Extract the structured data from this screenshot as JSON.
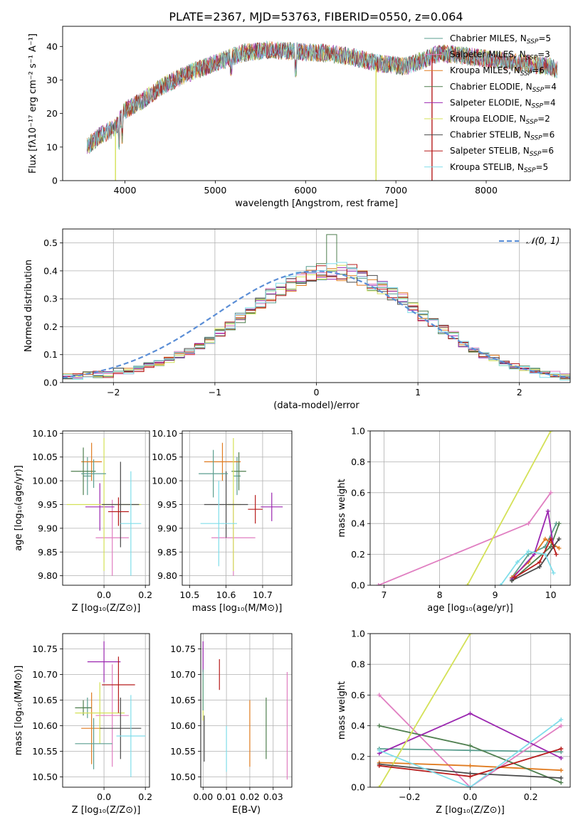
{
  "figure": {
    "title": "PLATE=2367, MJD=53763, FIBERID=0550, z=0.064"
  },
  "legend": {
    "models": [
      {
        "name": "Chabrier MILES",
        "n": "5",
        "color": "#5a9e8f"
      },
      {
        "name": "Salpeter MILES",
        "n": "3",
        "color": "#e07ec1"
      },
      {
        "name": "Kroupa MILES",
        "n": "6",
        "color": "#e07b20"
      },
      {
        "name": "Chabrier ELODIE",
        "n": "4",
        "color": "#4f7f4f"
      },
      {
        "name": "Salpeter ELODIE",
        "n": "4",
        "color": "#9b27b0"
      },
      {
        "name": "Kroupa ELODIE",
        "n": "2",
        "color": "#d4e157"
      },
      {
        "name": "Chabrier STELIB",
        "n": "6",
        "color": "#4a4a4a"
      },
      {
        "name": "Salpeter STELIB",
        "n": "6",
        "color": "#b71c1c"
      },
      {
        "name": "Kroupa STELIB",
        "n": "5",
        "color": "#80deea"
      }
    ],
    "nssp_label": "N",
    "nssp_sub": "SSP"
  },
  "chart_data": [
    {
      "id": "spectrum",
      "type": "line",
      "xlabel": "wavelength [Angstrom, rest frame]",
      "ylabel": "Flux [fλ10⁻¹⁷ erg cm⁻² s⁻¹ A⁻¹]",
      "xlim": [
        3310,
        8930
      ],
      "ylim": [
        0,
        46
      ],
      "xticks": [
        "4000",
        "5000",
        "6000",
        "7000",
        "8000"
      ],
      "yticks": [
        "0",
        "10",
        "20",
        "30",
        "40"
      ],
      "continuum": {
        "x": [
          3580,
          3700,
          3900,
          4000,
          4200,
          4400,
          4700,
          5000,
          5300,
          5600,
          5900,
          6200,
          6500,
          6800,
          7100,
          7300,
          7500,
          7800,
          8100,
          8400,
          8700,
          8790
        ],
        "y": [
          10,
          13,
          16,
          21,
          24,
          28,
          32,
          35,
          38,
          39,
          38.5,
          38,
          37,
          35,
          34,
          36,
          38,
          37,
          36,
          35,
          34,
          33
        ]
      },
      "dropouts": [
        {
          "model": "Kroupa ELODIE",
          "x": 3895
        },
        {
          "model": "Kroupa ELODIE",
          "x": 6780
        },
        {
          "model": "Salpeter STELIB",
          "x": 7400
        }
      ]
    },
    {
      "id": "residuals",
      "type": "bar",
      "xlabel": "(data-model)/error",
      "ylabel": "Normed distribution",
      "xlim": [
        -2.5,
        2.5
      ],
      "ylim": [
        0,
        0.55
      ],
      "xticks": [
        "−2",
        "−1",
        "0",
        "1",
        "2"
      ],
      "yticks": [
        "0.0",
        "0.1",
        "0.2",
        "0.3",
        "0.4",
        "0.5"
      ],
      "legend": "𝒩(0, 1)",
      "gaussian_color": "#5b8ed6",
      "bin_width": 0.1,
      "bin_start": -2.5,
      "base_values": [
        0.02,
        0.02,
        0.03,
        0.03,
        0.03,
        0.04,
        0.04,
        0.05,
        0.06,
        0.07,
        0.08,
        0.1,
        0.11,
        0.13,
        0.15,
        0.18,
        0.2,
        0.23,
        0.26,
        0.28,
        0.31,
        0.33,
        0.35,
        0.37,
        0.39,
        0.4,
        0.4,
        0.4,
        0.39,
        0.38,
        0.36,
        0.34,
        0.32,
        0.3,
        0.27,
        0.24,
        0.22,
        0.19,
        0.17,
        0.14,
        0.12,
        0.1,
        0.09,
        0.07,
        0.06,
        0.05,
        0.04,
        0.03,
        0.03,
        0.02
      ],
      "peak": {
        "x": 0.1,
        "y": 0.53
      }
    },
    {
      "id": "age-vs-Z",
      "type": "scatter",
      "xlabel": "Z [log₁₀(Z/Z⊙)]",
      "ylabel": "age  [log₁₀(age/yr)]",
      "xlim": [
        -0.2,
        0.22
      ],
      "ylim": [
        9.78,
        10.105
      ],
      "xticks": [
        "0.0",
        "0.2"
      ],
      "yticks": [
        "9.80",
        "9.85",
        "9.90",
        "9.95",
        "10.00",
        "10.05",
        "10.10"
      ],
      "points": [
        {
          "x": -0.08,
          "xerr": 0.02,
          "y": 10.01,
          "yerr": 0.04
        },
        {
          "x": 0.04,
          "xerr": 0.08,
          "y": 9.88,
          "yerr": 0.08
        },
        {
          "x": -0.06,
          "xerr": 0.05,
          "y": 10.04,
          "yerr": 0.04
        },
        {
          "x": -0.1,
          "xerr": 0.06,
          "y": 10.02,
          "yerr": 0.05
        },
        {
          "x": -0.02,
          "xerr": 0.07,
          "y": 9.945,
          "yerr": 0.05
        },
        {
          "x": 0.0,
          "xerr": 0.18,
          "y": 9.95,
          "yerr": 0.14
        },
        {
          "x": 0.08,
          "xerr": 0.09,
          "y": 9.95,
          "yerr": 0.09
        },
        {
          "x": 0.07,
          "xerr": 0.05,
          "y": 9.935,
          "yerr": 0.03
        },
        {
          "x": 0.13,
          "xerr": 0.05,
          "y": 9.91,
          "yerr": 0.11
        },
        {
          "x": -0.05,
          "xerr": 0.06,
          "y": 10.015,
          "yerr": 0.03
        }
      ]
    },
    {
      "id": "age-vs-mass",
      "type": "scatter",
      "xlabel": "mass [log₁₀(M/M⊙)]",
      "ylabel": "",
      "xlim": [
        10.48,
        10.78
      ],
      "ylim": [
        9.78,
        10.105
      ],
      "xticks": [
        "10.5",
        "10.6",
        "10.7"
      ],
      "yticks": [
        "9.80",
        "9.85",
        "9.90",
        "9.95",
        "10.00",
        "10.05",
        "10.10"
      ],
      "points": [
        {
          "x": 10.63,
          "xerr": 0.01,
          "y": 10.01,
          "yerr": 0.04
        },
        {
          "x": 10.62,
          "xerr": 0.06,
          "y": 9.88,
          "yerr": 0.08
        },
        {
          "x": 10.59,
          "xerr": 0.05,
          "y": 10.04,
          "yerr": 0.04
        },
        {
          "x": 10.635,
          "xerr": 0.02,
          "y": 10.02,
          "yerr": 0.04
        },
        {
          "x": 10.725,
          "xerr": 0.03,
          "y": 9.945,
          "yerr": 0.03
        },
        {
          "x": 10.62,
          "xerr": 0.02,
          "y": 9.95,
          "yerr": 0.14
        },
        {
          "x": 10.6,
          "xerr": 0.06,
          "y": 9.95,
          "yerr": 0.07
        },
        {
          "x": 10.68,
          "xerr": 0.02,
          "y": 9.94,
          "yerr": 0.03
        },
        {
          "x": 10.58,
          "xerr": 0.05,
          "y": 9.91,
          "yerr": 0.09
        },
        {
          "x": 10.565,
          "xerr": 0.04,
          "y": 10.015,
          "yerr": 0.05
        }
      ]
    },
    {
      "id": "mass-weight-vs-age",
      "type": "line",
      "xlabel": "age  [log₁₀(age/yr)]",
      "ylabel": "mass weight",
      "xlim": [
        6.75,
        10.35
      ],
      "ylim": [
        0,
        1.0
      ],
      "xticks": [
        "7",
        "8",
        "9",
        "10"
      ],
      "yticks": [
        "0.0",
        "0.2",
        "0.4",
        "0.6",
        "0.8",
        "1.0"
      ],
      "series": [
        {
          "model": "Chabrier MILES",
          "x": [
            9.3,
            9.6,
            9.9,
            10.1
          ],
          "y": [
            0.05,
            0.2,
            0.25,
            0.4
          ]
        },
        {
          "model": "Salpeter MILES",
          "x": [
            6.9,
            9.6,
            10.0
          ],
          "y": [
            0.0,
            0.4,
            0.6
          ]
        },
        {
          "model": "Kroupa MILES",
          "x": [
            9.3,
            9.6,
            9.9,
            10.15
          ],
          "y": [
            0.05,
            0.15,
            0.3,
            0.24
          ]
        },
        {
          "model": "Chabrier ELODIE",
          "x": [
            9.3,
            10.0,
            10.15
          ],
          "y": [
            0.03,
            0.25,
            0.4
          ]
        },
        {
          "model": "Salpeter ELODIE",
          "x": [
            9.3,
            9.7,
            9.95,
            10.05
          ],
          "y": [
            0.04,
            0.2,
            0.48,
            0.25
          ]
        },
        {
          "model": "Kroupa ELODIE",
          "x": [
            8.5,
            10.0
          ],
          "y": [
            0.0,
            1.0
          ]
        },
        {
          "model": "Chabrier STELIB",
          "x": [
            9.3,
            9.8,
            10.05,
            10.15
          ],
          "y": [
            0.03,
            0.12,
            0.25,
            0.3
          ]
        },
        {
          "model": "Salpeter STELIB",
          "x": [
            9.35,
            9.8,
            10.0,
            10.1
          ],
          "y": [
            0.05,
            0.15,
            0.3,
            0.2
          ]
        },
        {
          "model": "Kroupa STELIB",
          "x": [
            9.1,
            9.4,
            9.6,
            9.9,
            10.05
          ],
          "y": [
            0.0,
            0.15,
            0.22,
            0.2,
            0.08
          ]
        }
      ]
    },
    {
      "id": "mass-vs-Z",
      "type": "scatter",
      "xlabel": "Z [log₁₀(Z/Z⊙)]",
      "ylabel": "mass [log₁₀(M/M⊙)]",
      "xlim": [
        -0.2,
        0.22
      ],
      "ylim": [
        10.48,
        10.78
      ],
      "xticks": [
        "0.0",
        "0.2"
      ],
      "yticks": [
        "10.50",
        "10.55",
        "10.60",
        "10.65",
        "10.70",
        "10.75"
      ],
      "points": [
        {
          "x": -0.08,
          "xerr": 0.02,
          "y": 10.635,
          "yerr": 0.02
        },
        {
          "x": 0.04,
          "xerr": 0.08,
          "y": 10.62,
          "yerr": 0.1
        },
        {
          "x": -0.06,
          "xerr": 0.05,
          "y": 10.595,
          "yerr": 0.07
        },
        {
          "x": -0.1,
          "xerr": 0.04,
          "y": 10.635,
          "yerr": 0.015
        },
        {
          "x": 0.0,
          "xerr": 0.08,
          "y": 10.725,
          "yerr": 0.04
        },
        {
          "x": -0.02,
          "xerr": 0.12,
          "y": 10.625,
          "yerr": 0.06
        },
        {
          "x": 0.08,
          "xerr": 0.1,
          "y": 10.595,
          "yerr": 0.06
        },
        {
          "x": 0.07,
          "xerr": 0.08,
          "y": 10.68,
          "yerr": 0.055
        },
        {
          "x": 0.13,
          "xerr": 0.07,
          "y": 10.58,
          "yerr": 0.08
        },
        {
          "x": -0.05,
          "xerr": 0.09,
          "y": 10.565,
          "yerr": 0.05
        }
      ]
    },
    {
      "id": "mass-vs-EBV",
      "type": "scatter",
      "xlabel": "E(B-V)",
      "ylabel": "",
      "xlim": [
        -0.001,
        0.038
      ],
      "ylim": [
        10.48,
        10.78
      ],
      "xticks": [
        "0.00",
        "0.01",
        "0.02",
        "0.03"
      ],
      "yticks": [
        "10.50",
        "10.55",
        "10.60",
        "10.65",
        "10.70",
        "10.75"
      ],
      "points": [
        {
          "x": 0.0,
          "y": 10.735,
          "yerr": 0.03,
          "model": "Salpeter ELODIE"
        },
        {
          "x": 0.0,
          "y": 10.65,
          "yerr": 0.04,
          "model": "Kroupa ELODIE"
        },
        {
          "x": 0.0005,
          "y": 10.575,
          "yerr": 0.045,
          "model": "Chabrier STELIB"
        },
        {
          "x": 0.0,
          "y": 10.67,
          "yerr": 0.04,
          "model": "Chabrier MILES"
        },
        {
          "x": 0.007,
          "y": 10.7,
          "yerr": 0.03,
          "model": "Salpeter STELIB"
        },
        {
          "x": 0.01,
          "y": 10.555,
          "yerr": 0.045,
          "model": "Kroupa STELIB"
        },
        {
          "x": 0.02,
          "y": 10.585,
          "yerr": 0.065,
          "model": "Kroupa MILES"
        },
        {
          "x": 0.027,
          "y": 10.595,
          "yerr": 0.06,
          "model": "Chabrier ELODIE"
        },
        {
          "x": 0.036,
          "y": 10.6,
          "yerr": 0.105,
          "model": "Salpeter MILES"
        }
      ]
    },
    {
      "id": "mass-weight-vs-Z",
      "type": "line",
      "xlabel": "Z [log₁₀(Z/Z⊙)]",
      "ylabel": "mass weight",
      "xlim": [
        -0.33,
        0.33
      ],
      "ylim": [
        0,
        1.0
      ],
      "xticks": [
        "−0.2",
        "0.0",
        "0.2"
      ],
      "yticks": [
        "0.0",
        "0.2",
        "0.4",
        "0.6",
        "0.8",
        "1.0"
      ],
      "series": [
        {
          "model": "Chabrier MILES",
          "x": [
            -0.3,
            0.0,
            0.3
          ],
          "y": [
            0.25,
            0.24,
            0.23
          ]
        },
        {
          "model": "Salpeter MILES",
          "x": [
            -0.3,
            0.0,
            0.3
          ],
          "y": [
            0.6,
            0.0,
            0.4
          ]
        },
        {
          "model": "Kroupa MILES",
          "x": [
            -0.3,
            0.0,
            0.3
          ],
          "y": [
            0.16,
            0.14,
            0.11
          ]
        },
        {
          "model": "Chabrier ELODIE",
          "x": [
            -0.3,
            0.0,
            0.3
          ],
          "y": [
            0.4,
            0.27,
            0.03
          ]
        },
        {
          "model": "Salpeter ELODIE",
          "x": [
            -0.3,
            0.0,
            0.3
          ],
          "y": [
            0.22,
            0.48,
            0.19
          ]
        },
        {
          "model": "Kroupa ELODIE",
          "x": [
            -0.3,
            0.0
          ],
          "y": [
            0.0,
            1.0
          ]
        },
        {
          "model": "Chabrier STELIB",
          "x": [
            -0.3,
            0.0,
            0.3
          ],
          "y": [
            0.15,
            0.09,
            0.06
          ]
        },
        {
          "model": "Salpeter STELIB",
          "x": [
            -0.3,
            0.0,
            0.3
          ],
          "y": [
            0.14,
            0.07,
            0.25
          ]
        },
        {
          "model": "Kroupa STELIB",
          "x": [
            -0.3,
            0.0,
            0.3
          ],
          "y": [
            0.24,
            0.0,
            0.44
          ]
        }
      ]
    }
  ]
}
